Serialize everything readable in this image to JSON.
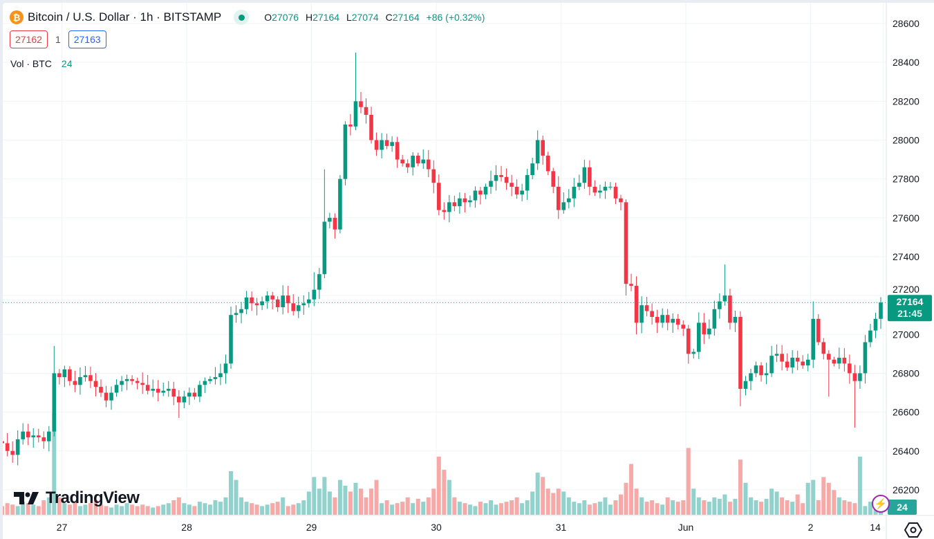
{
  "header": {
    "coin_icon": "bitcoin-icon",
    "coin_glyph": "₿",
    "title": "Bitcoin / U.S. Dollar · 1h · BITSTAMP",
    "ohlc": {
      "o_label": "O",
      "o": "27076",
      "h_label": "H",
      "h": "27164",
      "l_label": "L",
      "l": "27074",
      "c_label": "C",
      "c": "27164",
      "change": "+86 (+0.32%)"
    },
    "sell_price": "27162",
    "spread": "1",
    "buy_price": "27163",
    "vol_label": "Vol · BTC",
    "vol_value": "24"
  },
  "logo_text": "TradingView",
  "colors": {
    "up": "#089981",
    "down": "#f23645",
    "vol_up": "#92d2cc",
    "vol_down": "#f7a9a7",
    "grid": "#f0f3fa",
    "axis_text": "#131722"
  },
  "chart_data": {
    "type": "candlestick",
    "symbol": "BTCUSD",
    "interval": "1h",
    "ylim": [
      26100,
      28680
    ],
    "y_ticks": [
      26200,
      26400,
      26600,
      26800,
      27000,
      27200,
      27400,
      27600,
      27800,
      28000,
      28200,
      28400,
      28600
    ],
    "x_ticks": [
      {
        "label": "27",
        "index": 12
      },
      {
        "label": "28",
        "index": 36
      },
      {
        "label": "29",
        "index": 60
      },
      {
        "label": "30",
        "index": 84
      },
      {
        "label": "31",
        "index": 108
      },
      {
        "label": "Jun",
        "index": 132
      },
      {
        "label": "2",
        "index": 156
      },
      {
        "label": "14",
        "index": 170
      }
    ],
    "first_open": 26450,
    "closes": [
      26440,
      26400,
      26380,
      26460,
      26500,
      26470,
      26480,
      26470,
      26450,
      26500,
      26800,
      26780,
      26820,
      26760,
      26740,
      26780,
      26790,
      26760,
      26730,
      26700,
      26660,
      26700,
      26740,
      26760,
      26770,
      26760,
      26750,
      26740,
      26710,
      26720,
      26700,
      26710,
      26720,
      26680,
      26650,
      26680,
      26700,
      26680,
      26740,
      26760,
      26770,
      26780,
      26800,
      26850,
      27100,
      27110,
      27130,
      27190,
      27160,
      27150,
      27170,
      27200,
      27180,
      27140,
      27200,
      27160,
      27120,
      27150,
      27160,
      27180,
      27230,
      27310,
      27580,
      27600,
      27540,
      27800,
      28080,
      28070,
      28200,
      28170,
      28130,
      28000,
      27950,
      28000,
      27970,
      27990,
      27900,
      27880,
      27860,
      27920,
      27880,
      27900,
      27850,
      27780,
      27640,
      27630,
      27680,
      27660,
      27700,
      27680,
      27690,
      27740,
      27720,
      27760,
      27790,
      27820,
      27810,
      27780,
      27760,
      27720,
      27740,
      27820,
      27880,
      28000,
      27920,
      27840,
      27760,
      27640,
      27680,
      27700,
      27760,
      27780,
      27860,
      27760,
      27730,
      27740,
      27760,
      27760,
      27700,
      27680,
      27260,
      27250,
      27060,
      27150,
      27120,
      27090,
      27060,
      27100,
      27060,
      27080,
      27050,
      27030,
      26900,
      26910,
      27060,
      27000,
      27030,
      27130,
      27170,
      27200,
      27060,
      27090,
      26720,
      26760,
      26800,
      26840,
      26790,
      26800,
      26890,
      26900,
      26860,
      26830,
      26880,
      26860,
      26840,
      26870,
      27080,
      26960,
      26900,
      26870,
      26850,
      26880,
      26850,
      26800,
      26760,
      26800,
      26960,
      27020,
      27080,
      27164
    ],
    "wick_extremes": [
      {
        "i": 10,
        "h": 26940
      },
      {
        "i": 34,
        "l": 26570
      },
      {
        "i": 60,
        "h": 27320
      },
      {
        "i": 62,
        "h": 27850
      },
      {
        "i": 68,
        "h": 28450
      },
      {
        "i": 103,
        "h": 28050
      },
      {
        "i": 120,
        "l": 27200
      },
      {
        "i": 122,
        "l": 27000
      },
      {
        "i": 139,
        "h": 27360
      },
      {
        "i": 142,
        "l": 26630
      },
      {
        "i": 156,
        "h": 27170
      },
      {
        "i": 159,
        "l": 26680
      },
      {
        "i": 164,
        "l": 26520
      }
    ],
    "volumes": [
      30,
      40,
      35,
      30,
      45,
      40,
      35,
      30,
      50,
      60,
      350,
      60,
      40,
      35,
      45,
      30,
      35,
      40,
      50,
      35,
      30,
      25,
      35,
      30,
      40,
      35,
      30,
      35,
      30,
      25,
      30,
      35,
      40,
      50,
      60,
      40,
      35,
      30,
      45,
      40,
      35,
      50,
      45,
      60,
      150,
      120,
      60,
      45,
      40,
      35,
      30,
      35,
      40,
      45,
      60,
      30,
      35,
      40,
      50,
      80,
      130,
      90,
      130,
      80,
      60,
      120,
      100,
      80,
      110,
      90,
      60,
      90,
      120,
      40,
      50,
      35,
      40,
      45,
      60,
      40,
      55,
      45,
      60,
      90,
      200,
      155,
      120,
      60,
      45,
      40,
      35,
      30,
      45,
      40,
      50,
      35,
      40,
      45,
      50,
      60,
      40,
      50,
      80,
      145,
      130,
      90,
      75,
      90,
      80,
      60,
      45,
      40,
      50,
      35,
      40,
      45,
      60,
      35,
      50,
      70,
      110,
      175,
      90,
      60,
      45,
      50,
      40,
      35,
      60,
      50,
      45,
      50,
      230,
      90,
      60,
      50,
      45,
      60,
      55,
      70,
      45,
      55,
      190,
      110,
      60,
      50,
      45,
      55,
      90,
      80,
      60,
      50,
      45,
      70,
      40,
      110,
      120,
      50,
      130,
      110,
      85,
      60,
      50,
      45,
      40,
      200,
      30,
      45,
      35,
      24
    ]
  },
  "price_label": {
    "price": "27164",
    "countdown": "21:45"
  },
  "volume_label": "24",
  "icons": {
    "bolt": "lightning-icon",
    "settings": "settings-icon",
    "bolt_glyph": "⚡"
  }
}
